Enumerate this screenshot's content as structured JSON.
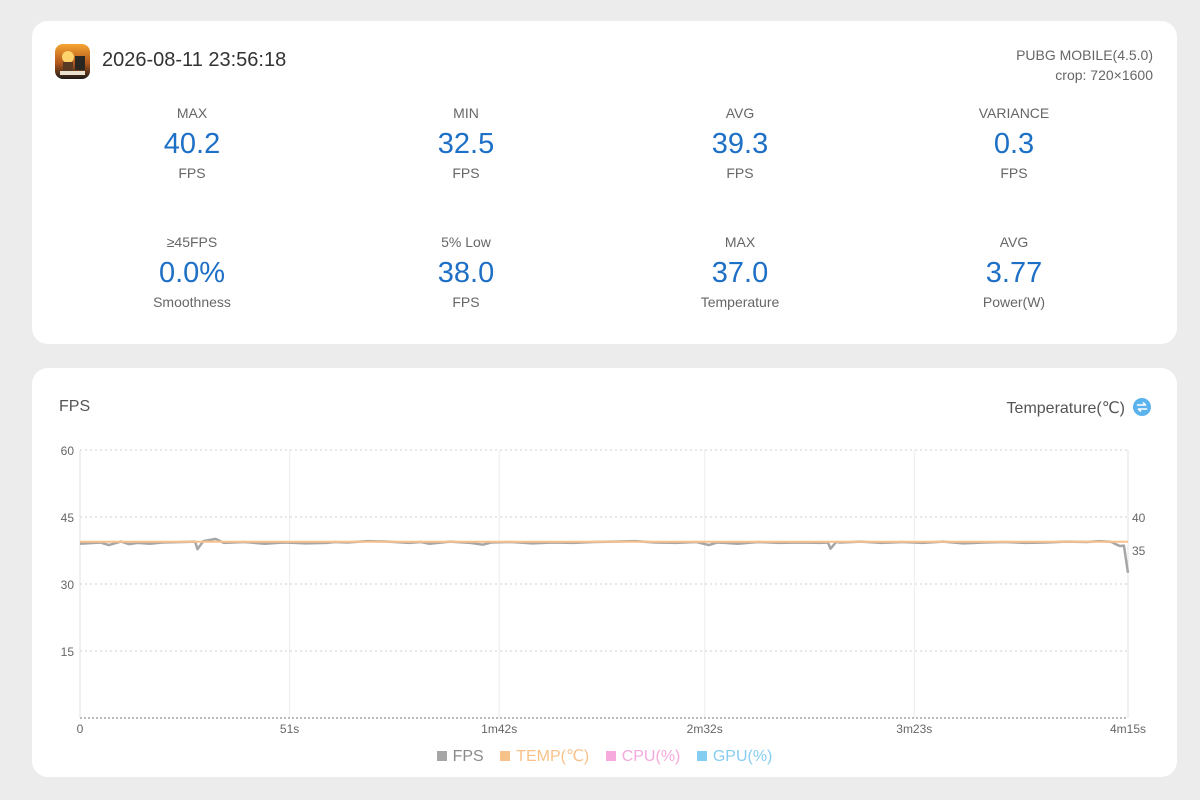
{
  "header": {
    "timestamp": "2026-08-11 23:56:18",
    "app_name": "PUBG MOBILE(4.5.0)",
    "crop": "crop: 720×1600"
  },
  "stats": [
    {
      "label": "MAX",
      "value": "40.2",
      "unit": "FPS"
    },
    {
      "label": "MIN",
      "value": "32.5",
      "unit": "FPS"
    },
    {
      "label": "AVG",
      "value": "39.3",
      "unit": "FPS"
    },
    {
      "label": "VARIANCE",
      "value": "0.3",
      "unit": "FPS"
    },
    {
      "label": "≥45FPS",
      "value": "0.0%",
      "unit": "Smoothness"
    },
    {
      "label": "5% Low",
      "value": "38.0",
      "unit": "FPS"
    },
    {
      "label": "MAX",
      "value": "37.0",
      "unit": "Temperature"
    },
    {
      "label": "AVG",
      "value": "3.77",
      "unit": "Power(W)"
    }
  ],
  "chart_titles": {
    "left": "FPS",
    "right": "Temperature(℃)"
  },
  "colors": {
    "accent": "#1e6fc6",
    "fps": "#a6a6a6",
    "temp": "#f7c289",
    "cpu": "#f5a9dc",
    "gpu": "#86cdf2"
  },
  "chart_data": {
    "type": "line",
    "x_range": [
      0,
      255
    ],
    "x_unit": "seconds",
    "x_ticks": [
      {
        "value": 0,
        "label": "0"
      },
      {
        "value": 51,
        "label": "51s"
      },
      {
        "value": 102,
        "label": "1m42s"
      },
      {
        "value": 152,
        "label": "2m32s"
      },
      {
        "value": 203,
        "label": "3m23s"
      },
      {
        "value": 255,
        "label": "4m15s"
      }
    ],
    "y_left": {
      "range": [
        0,
        60
      ],
      "ticks": [
        "60",
        "45",
        "30",
        "15"
      ]
    },
    "y_right": {
      "ticks": [
        {
          "value": 40,
          "label": "40"
        },
        {
          "value": 35,
          "label": "35"
        }
      ]
    },
    "grid": true,
    "legend_position": "bottom-center",
    "series": [
      {
        "name": "FPS",
        "axis": "left",
        "x": [
          0,
          5,
          7,
          10,
          12,
          14,
          17,
          20,
          25,
          28,
          28.6,
          30,
          33,
          35,
          40,
          45,
          48,
          50,
          55,
          60,
          62,
          65,
          70,
          75,
          80,
          83,
          85,
          88,
          90,
          95,
          98,
          100,
          105,
          110,
          115,
          120,
          125,
          130,
          135,
          140,
          145,
          150,
          153,
          155,
          157,
          160,
          165,
          170,
          175,
          180,
          182,
          182.6,
          184,
          185,
          190,
          195,
          200,
          205,
          210,
          215,
          220,
          225,
          230,
          235,
          240,
          245,
          248,
          250,
          251,
          252,
          253,
          254,
          255
        ],
        "y": [
          39.0,
          39.3,
          38.7,
          39.5,
          38.9,
          39.2,
          39.0,
          39.3,
          39.4,
          39.5,
          37.8,
          39.6,
          40.1,
          39.2,
          39.4,
          39.0,
          39.2,
          39.3,
          39.1,
          39.2,
          39.4,
          39.3,
          39.6,
          39.5,
          39.2,
          39.4,
          39.0,
          39.3,
          39.5,
          39.2,
          38.8,
          39.3,
          39.4,
          39.1,
          39.3,
          39.2,
          39.4,
          39.5,
          39.6,
          39.3,
          39.2,
          39.4,
          38.7,
          39.3,
          39.2,
          39.0,
          39.4,
          39.2,
          39.3,
          39.2,
          39.3,
          37.9,
          39.4,
          39.3,
          39.5,
          39.2,
          39.4,
          39.2,
          39.5,
          39.1,
          39.3,
          39.4,
          39.2,
          39.3,
          39.5,
          39.4,
          39.6,
          39.5,
          39.4,
          38.9,
          38.5,
          38.6,
          32.5
        ]
      },
      {
        "name": "TEMP(℃)",
        "axis": "right",
        "x": [
          0,
          255
        ],
        "y": [
          36.4,
          36.4
        ]
      }
    ],
    "legend": [
      "FPS",
      "TEMP(℃)",
      "CPU(%)",
      "GPU(%)"
    ]
  }
}
